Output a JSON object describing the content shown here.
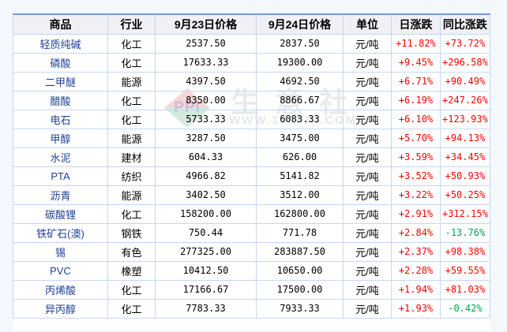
{
  "page": {
    "background": "#f3f8fd"
  },
  "colors": {
    "positive": "#ff0000",
    "negative": "#00a651",
    "commodity_link": "#1f4096",
    "table_top_border": "#7a9bdb",
    "cell_border": "#c5d7f3",
    "header_bg": "#f0f0f5"
  },
  "watermark": {
    "logo_text": "PPI",
    "brand": "生意社",
    "url": "WWW.100PPI.COM"
  },
  "table": {
    "columns": [
      {
        "label": "商品"
      },
      {
        "label": "行业"
      },
      {
        "label": "9月23日价格"
      },
      {
        "label": "9月24日价格"
      },
      {
        "label": "单位"
      },
      {
        "label": "日涨跌"
      },
      {
        "label": "同比涨跌"
      }
    ],
    "rows": [
      {
        "commodity": "轻质纯碱",
        "industry": "化工",
        "price_0923": "2537.50",
        "price_0924": "2837.50",
        "unit": "元/吨",
        "daily_change": "+11.82%",
        "yoy_change": "+73.72%"
      },
      {
        "commodity": "磷酸",
        "industry": "化工",
        "price_0923": "17633.33",
        "price_0924": "19300.00",
        "unit": "元/吨",
        "daily_change": "+9.45%",
        "yoy_change": "+296.58%"
      },
      {
        "commodity": "二甲醚",
        "industry": "能源",
        "price_0923": "4397.50",
        "price_0924": "4692.50",
        "unit": "元/吨",
        "daily_change": "+6.71%",
        "yoy_change": "+90.49%"
      },
      {
        "commodity": "醋酸",
        "industry": "化工",
        "price_0923": "8350.00",
        "price_0924": "8866.67",
        "unit": "元/吨",
        "daily_change": "+6.19%",
        "yoy_change": "+247.26%"
      },
      {
        "commodity": "电石",
        "industry": "化工",
        "price_0923": "5733.33",
        "price_0924": "6083.33",
        "unit": "元/吨",
        "daily_change": "+6.10%",
        "yoy_change": "+123.93%"
      },
      {
        "commodity": "甲醇",
        "industry": "能源",
        "price_0923": "3287.50",
        "price_0924": "3475.00",
        "unit": "元/吨",
        "daily_change": "+5.70%",
        "yoy_change": "+94.13%"
      },
      {
        "commodity": "水泥",
        "industry": "建材",
        "price_0923": "604.33",
        "price_0924": "626.00",
        "unit": "元/吨",
        "daily_change": "+3.59%",
        "yoy_change": "+34.45%"
      },
      {
        "commodity": "PTA",
        "industry": "纺织",
        "price_0923": "4966.82",
        "price_0924": "5141.82",
        "unit": "元/吨",
        "daily_change": "+3.52%",
        "yoy_change": "+50.93%"
      },
      {
        "commodity": "沥青",
        "industry": "能源",
        "price_0923": "3402.50",
        "price_0924": "3512.00",
        "unit": "元/吨",
        "daily_change": "+3.22%",
        "yoy_change": "+50.25%"
      },
      {
        "commodity": "碳酸锂",
        "industry": "化工",
        "price_0923": "158200.00",
        "price_0924": "162800.00",
        "unit": "元/吨",
        "daily_change": "+2.91%",
        "yoy_change": "+312.15%"
      },
      {
        "commodity": "铁矿石(澳)",
        "industry": "钢铁",
        "price_0923": "750.44",
        "price_0924": "771.78",
        "unit": "元/吨",
        "daily_change": "+2.84%",
        "yoy_change": "-13.76%"
      },
      {
        "commodity": "锡",
        "industry": "有色",
        "price_0923": "277325.00",
        "price_0924": "283887.50",
        "unit": "元/吨",
        "daily_change": "+2.37%",
        "yoy_change": "+98.38%"
      },
      {
        "commodity": "PVC",
        "industry": "橡塑",
        "price_0923": "10412.50",
        "price_0924": "10650.00",
        "unit": "元/吨",
        "daily_change": "+2.28%",
        "yoy_change": "+59.55%"
      },
      {
        "commodity": "丙烯酸",
        "industry": "化工",
        "price_0923": "17166.67",
        "price_0924": "17500.00",
        "unit": "元/吨",
        "daily_change": "+1.94%",
        "yoy_change": "+81.03%"
      },
      {
        "commodity": "异丙醇",
        "industry": "化工",
        "price_0923": "7783.33",
        "price_0924": "7933.33",
        "unit": "元/吨",
        "daily_change": "+1.93%",
        "yoy_change": "-0.42%"
      }
    ]
  }
}
